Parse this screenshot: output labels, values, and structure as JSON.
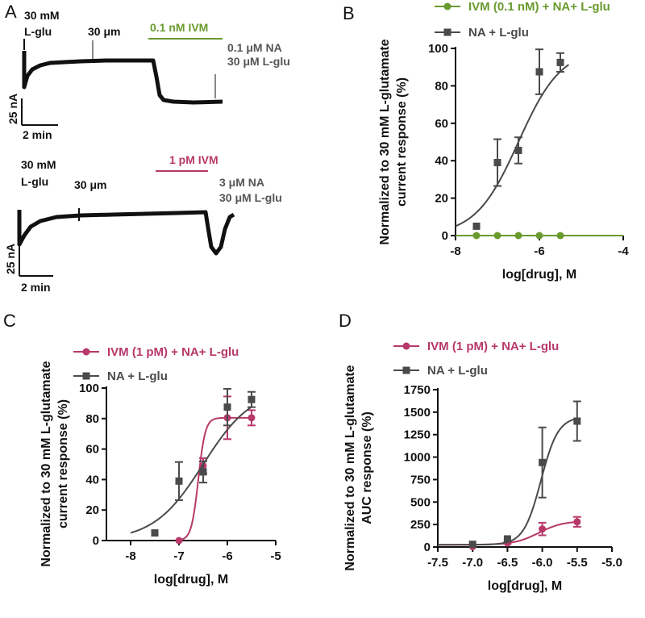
{
  "colors": {
    "green": "#6a9a2e",
    "magenta": "#b8386a",
    "gray": "#4a4a4a",
    "trace": "#111111"
  },
  "panels": {
    "A": {
      "label": "A",
      "trace1": {
        "left_label_1": "30 mM",
        "left_label_2": "L-glu",
        "mid_label": "30 μm",
        "bar_label": "0.1 nM IVM",
        "right_label_1": "0.1 μM NA",
        "right_label_2": "30 μM L-glu",
        "scale_y": "25 nA",
        "scale_x": "2 min"
      },
      "trace2": {
        "left_label_1": "30 mM",
        "left_label_2": "L-glu",
        "mid_label": "30 μm",
        "bar_label": "1 pM IVM",
        "right_label_1": "3 μM NA",
        "right_label_2": "30 μM L-glu",
        "scale_y": "25 nA",
        "scale_x": "2 min"
      }
    },
    "B": {
      "label": "B"
    },
    "C": {
      "label": "C"
    },
    "D": {
      "label": "D"
    }
  },
  "chart_data": [
    {
      "panel": "B",
      "type": "scatter",
      "xlabel": "log[drug], M",
      "ylabel_lines": [
        "Normalized to 30 mM L-glutamate",
        "current response (%)"
      ],
      "xlim": [
        -8,
        -4
      ],
      "ylim": [
        0,
        100
      ],
      "xticks": [
        -8,
        -6,
        -4
      ],
      "yticks": [
        0,
        20,
        40,
        60,
        80,
        100
      ],
      "legend_position": "top-right",
      "series": [
        {
          "name": "IVM (0.1 nM) + NA+ L-glu",
          "color": "#6a9a2e",
          "marker": "circle",
          "x": [
            -7.5,
            -7,
            -6.5,
            -6,
            -5.5
          ],
          "y": [
            0,
            0,
            0,
            0,
            0
          ],
          "err": [
            0,
            0,
            0,
            0,
            0
          ],
          "fit": "flat",
          "fit_range": [
            -8,
            -4
          ]
        },
        {
          "name": "NA + L-glu",
          "color": "#4a4a4a",
          "marker": "square",
          "x": [
            -7.5,
            -7,
            -6.5,
            -6,
            -5.5
          ],
          "y": [
            5,
            39,
            45.5,
            87.5,
            92.5
          ],
          "err": [
            0,
            12.5,
            7,
            12,
            5
          ],
          "fit": {
            "bottom": 0,
            "top": 100,
            "logEC50": -6.5,
            "hill": 0.85
          },
          "fit_range": [
            -8,
            -5.3
          ]
        }
      ]
    },
    {
      "panel": "C",
      "type": "scatter",
      "xlabel": "log[drug], M",
      "ylabel_lines": [
        "Normalized to 30 mM L-glutamate",
        "current response (%)"
      ],
      "xlim": [
        -8.5,
        -5
      ],
      "ylim": [
        0,
        100
      ],
      "xticks": [
        -8,
        -7,
        -6,
        -5
      ],
      "yticks": [
        0,
        20,
        40,
        60,
        80,
        100
      ],
      "legend_position": "top-left",
      "series": [
        {
          "name": "IVM (1 pM) + NA+ L-glu",
          "color": "#b8386a",
          "marker": "circle",
          "x": [
            -7,
            -6.5,
            -6,
            -5.5
          ],
          "y": [
            0,
            49,
            80.5,
            80.5
          ],
          "err": [
            0,
            5,
            14,
            5
          ],
          "fit": {
            "bottom": 0,
            "top": 80.5,
            "logEC50": -6.6,
            "hill": 6
          },
          "fit_range": [
            -7,
            -5.5
          ]
        },
        {
          "name": "NA + L-glu",
          "color": "#4a4a4a",
          "marker": "square",
          "x": [
            -7.5,
            -7,
            -6.5,
            -6,
            -5.5
          ],
          "y": [
            5,
            39,
            45,
            87.5,
            92.5
          ],
          "err": [
            0,
            12.5,
            7,
            12,
            5
          ],
          "fit": {
            "bottom": 0,
            "top": 100,
            "logEC50": -6.5,
            "hill": 0.85
          },
          "fit_range": [
            -8,
            -5.5
          ]
        }
      ]
    },
    {
      "panel": "D",
      "type": "scatter",
      "xlabel": "log[drug], M",
      "ylabel_lines": [
        "Normalized to 30 mM L-glutamate",
        "AUC response (%)"
      ],
      "xlim": [
        -7.5,
        -5.0
      ],
      "ylim": [
        0,
        1750
      ],
      "xticks": [
        -7.5,
        -7.0,
        -6.5,
        -6.0,
        -5.5,
        -5.0
      ],
      "yticks": [
        0,
        250,
        500,
        750,
        1000,
        1250,
        1500,
        1750
      ],
      "legend_position": "top-left",
      "series": [
        {
          "name": "IVM (1 pM) + NA+ L-glu",
          "color": "#b8386a",
          "marker": "circle",
          "x": [
            -7,
            -6.5,
            -6,
            -5.5
          ],
          "y": [
            5,
            45,
            200,
            280
          ],
          "err": [
            0,
            10,
            70,
            55
          ],
          "fit": {
            "bottom": 25,
            "top": 290,
            "logEC50": -6.05,
            "hill": 2.5
          },
          "fit_range": [
            -7.5,
            -5.5
          ]
        },
        {
          "name": "NA + L-glu",
          "color": "#4a4a4a",
          "marker": "square",
          "x": [
            -7,
            -6.5,
            -6,
            -5.5
          ],
          "y": [
            30,
            90,
            940,
            1400
          ],
          "err": [
            0,
            0,
            390,
            220
          ],
          "fit": {
            "bottom": 25,
            "top": 1450,
            "logEC50": -6.02,
            "hill": 3.5
          },
          "fit_range": [
            -7.5,
            -5.5
          ]
        }
      ]
    }
  ]
}
